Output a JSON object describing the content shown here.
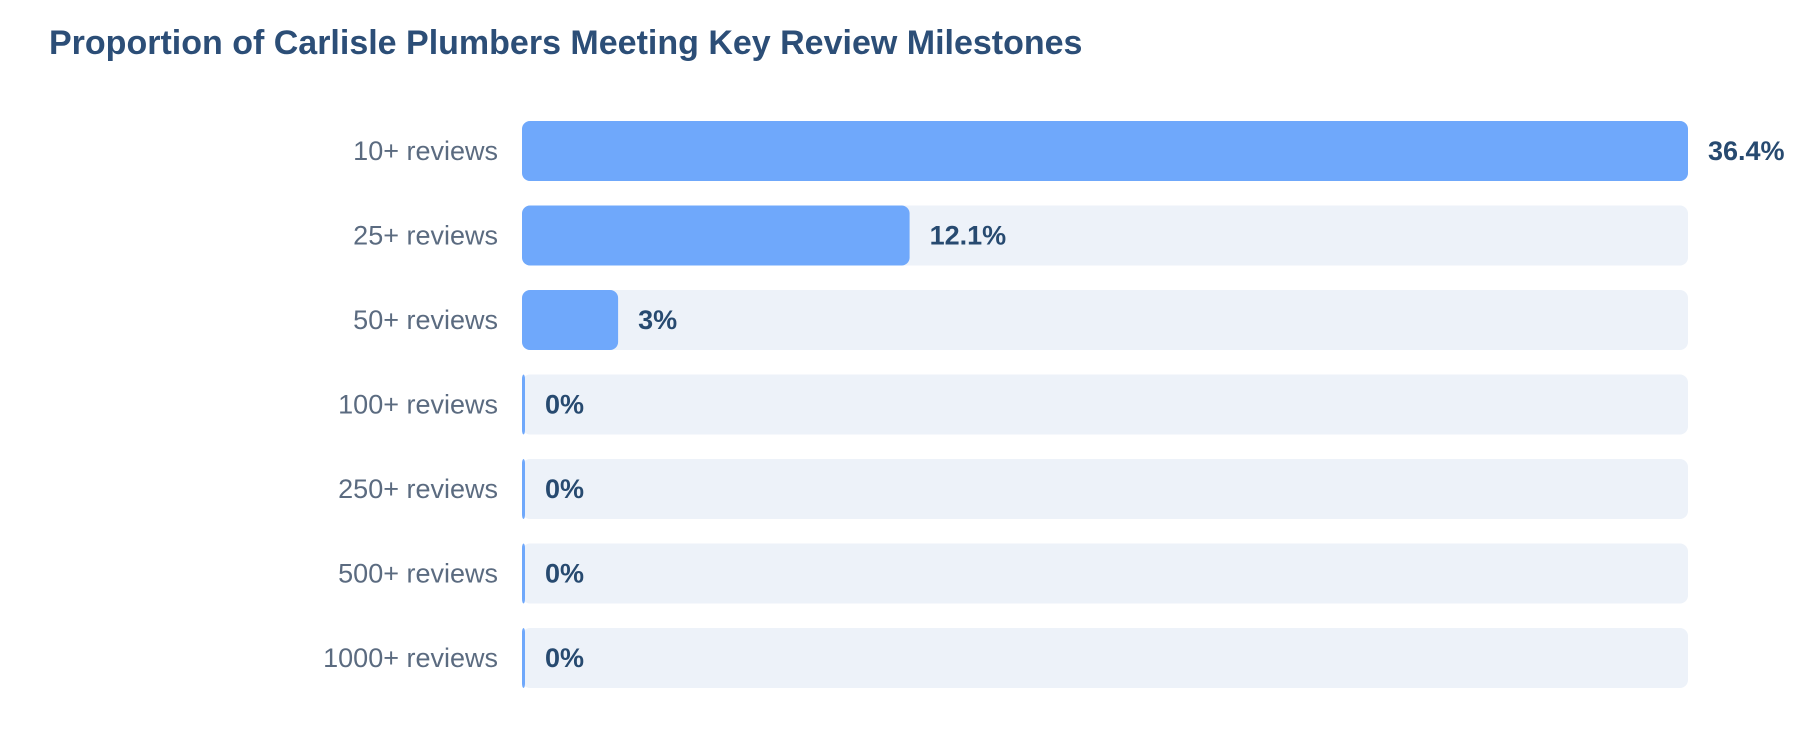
{
  "chart_data": {
    "type": "bar",
    "orientation": "horizontal",
    "title": "Proportion of Carlisle Plumbers Meeting Key Review Milestones",
    "categories": [
      "10+ reviews",
      "25+ reviews",
      "50+ reviews",
      "100+ reviews",
      "250+ reviews",
      "500+ reviews",
      "1000+ reviews"
    ],
    "values": [
      36.4,
      12.1,
      3,
      0,
      0,
      0,
      0
    ],
    "value_labels": [
      "36.4%",
      "12.1%",
      "3%",
      "0%",
      "0%",
      "0%",
      "0%"
    ],
    "xlim": [
      0,
      36.4
    ],
    "unit": "%",
    "grid": false,
    "legend": "none"
  },
  "colors": {
    "bar": "#6fa8fb",
    "track": "#edf2f9",
    "title": "#2c4e77",
    "category_text": "#5b6b80",
    "value_text": "#274a70"
  }
}
